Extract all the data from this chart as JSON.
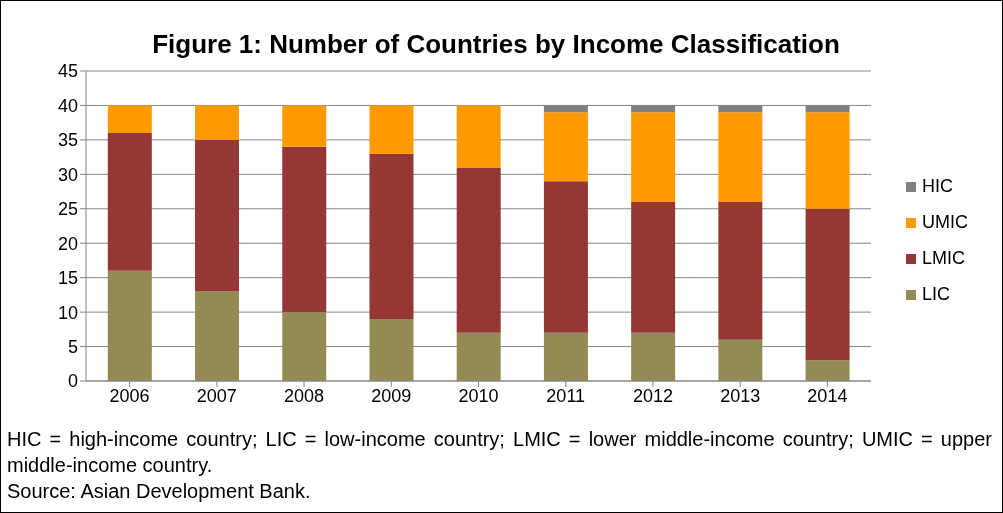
{
  "chart_data": {
    "type": "bar",
    "title": "Figure 1: Number of Countries by Income Classification",
    "categories": [
      "2006",
      "2007",
      "2008",
      "2009",
      "2010",
      "2011",
      "2012",
      "2013",
      "2014"
    ],
    "stacked": true,
    "series": [
      {
        "name": "LIC",
        "color": "#948a54",
        "values": [
          16,
          13,
          10,
          9,
          7,
          7,
          7,
          6,
          3
        ]
      },
      {
        "name": "LMIC",
        "color": "#953735",
        "values": [
          20,
          22,
          24,
          24,
          24,
          22,
          19,
          20,
          22
        ]
      },
      {
        "name": "UMIC",
        "color": "#ff9900",
        "values": [
          4,
          5,
          6,
          7,
          9,
          10,
          13,
          13,
          14
        ]
      },
      {
        "name": "HIC",
        "color": "#808080",
        "values": [
          0,
          0,
          0,
          0,
          0,
          1,
          1,
          1,
          1
        ]
      }
    ],
    "ylim": [
      0,
      45
    ],
    "yticks": [
      0,
      5,
      10,
      15,
      20,
      25,
      30,
      35,
      40,
      45
    ],
    "grid": "y",
    "legend": "right",
    "annotations": [
      "HIC = high-income country; LIC = low-income country; LMIC = lower middle-income country; UMIC = upper middle-income country.",
      "Source: Asian Development Bank."
    ]
  }
}
